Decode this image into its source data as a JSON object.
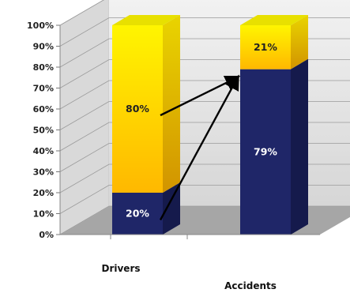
{
  "chart_data": {
    "type": "bar",
    "stacked": true,
    "view": "3d",
    "categories": [
      "Drivers",
      "Accidents"
    ],
    "series": [
      {
        "values": [
          20,
          79
        ],
        "labels": [
          "20%",
          "79%"
        ],
        "color": "#1f2668",
        "label_color": "#ffffff"
      },
      {
        "values": [
          80,
          21
        ],
        "labels": [
          "80%",
          "21%"
        ],
        "color": "#ffd400",
        "label_color": "#222222"
      }
    ],
    "ylim": [
      0,
      100
    ],
    "yticks": [
      "0%",
      "10%",
      "20%",
      "30%",
      "40%",
      "50%",
      "60%",
      "70%",
      "80%",
      "90%",
      "100%"
    ],
    "grid": true,
    "legend": "none",
    "arrows": [
      {
        "from_category": "Drivers",
        "from_series": 0,
        "to_category": "Accidents",
        "to_series": 0
      },
      {
        "from_category": "Drivers",
        "from_series": 1,
        "to_category": "Accidents",
        "to_series": 0
      }
    ],
    "title": "",
    "xlabel": "",
    "ylabel": ""
  }
}
